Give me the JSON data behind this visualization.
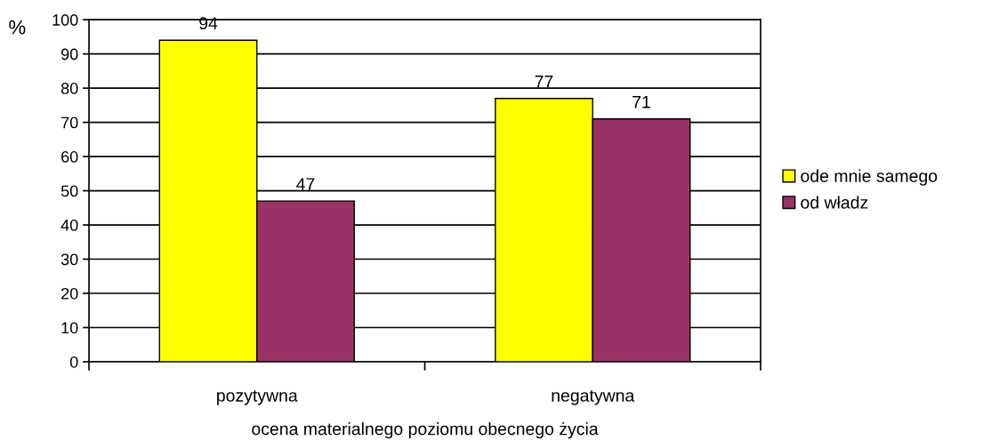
{
  "chart_data": {
    "type": "bar",
    "ylabel": "%",
    "xlabel": "ocena materialnego poziomu obecnego życia",
    "categories": [
      "pozytywna",
      "negatywna"
    ],
    "series": [
      {
        "name": "ode mnie samego",
        "color": "#ffff00",
        "values": [
          94,
          77
        ]
      },
      {
        "name": "od władz",
        "color": "#993366",
        "values": [
          47,
          71
        ]
      }
    ],
    "ylim": [
      0,
      100
    ],
    "yticks": [
      0,
      10,
      20,
      30,
      40,
      50,
      60,
      70,
      80,
      90,
      100
    ],
    "grid": "y",
    "legend": "right",
    "data_labels": true
  }
}
